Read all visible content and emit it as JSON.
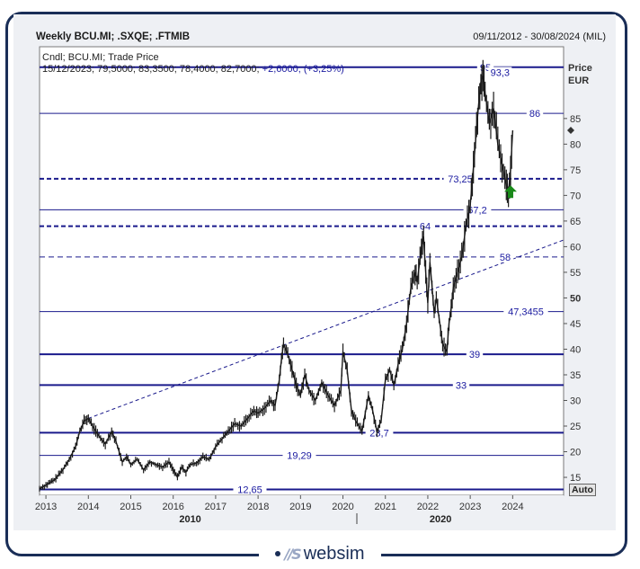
{
  "header": {
    "title": "Weekly BCU.MI; .SXQE; .FTMIB",
    "date_range": "09/11/2012 - 30/08/2024 (MIL)"
  },
  "legend": {
    "line1": "Cndl; BCU.MI; Trade Price",
    "line2_values": "15/12/2023; 79,5000; 83,3500; 78,4000; 82,7000;",
    "line2_change": "+2,6000; (+3,25%)"
  },
  "axis_unit": {
    "line1": "Price",
    "line2": "EUR"
  },
  "auto_button": "Auto",
  "footer": {
    "brand": "websim",
    "mark": "∕∕S"
  },
  "colors": {
    "frame": "#1a2e57",
    "level_line": "#1a1a8c",
    "level_label": "#1a1aa0",
    "candles": "#1a1a1a",
    "arrow": "#1a8a1a"
  },
  "chart_data": {
    "type": "candlestick",
    "series_name": "BCU.MI",
    "ylim": [
      11.5,
      99
    ],
    "xlim": [
      2012.85,
      2025.2
    ],
    "y_ticks": [
      15,
      20,
      25,
      30,
      35,
      40,
      45,
      50,
      55,
      60,
      65,
      70,
      75,
      80,
      85
    ],
    "y_bold_ticks": [
      50
    ],
    "x_ticks": [
      2013,
      2014,
      2015,
      2016,
      2017,
      2018,
      2019,
      2020,
      2021,
      2022,
      2023,
      2024
    ],
    "x_major_labels": [
      {
        "label": "2010",
        "x": 2016.4
      },
      {
        "label": "2020",
        "x": 2022.3
      }
    ],
    "horizontal_levels": [
      {
        "value": 95,
        "label": "95",
        "style": "solid-thick"
      },
      {
        "value": 86,
        "label": "86",
        "style": "solid"
      },
      {
        "value": 73.25,
        "label": "73,25",
        "style": "dashed-thick"
      },
      {
        "value": 67.2,
        "label": "67,2",
        "style": "solid"
      },
      {
        "value": 64,
        "label": "64",
        "style": "dashed-thick"
      },
      {
        "value": 58,
        "label": "58",
        "style": "dashed"
      },
      {
        "value": 47.3455,
        "label": "47,3455",
        "style": "solid"
      },
      {
        "value": 39,
        "label": "39",
        "style": "solid-thick"
      },
      {
        "value": 33,
        "label": "33",
        "style": "solid-thick"
      },
      {
        "value": 23.7,
        "label": "23,7",
        "style": "solid-thick"
      },
      {
        "value": 19.29,
        "label": "19,29",
        "style": "solid"
      },
      {
        "value": 12.65,
        "label": "12,65",
        "style": "solid-thick"
      }
    ],
    "peak_label": {
      "value": 93.3,
      "label": "93,3",
      "x": 2023.3
    },
    "trendline": {
      "from": [
        2014.0,
        26.5
      ],
      "to": [
        2025.2,
        61.3
      ]
    },
    "last_marker": {
      "value": 82.7
    },
    "signal_arrow": {
      "x": 2023.95,
      "y": 69.5,
      "direction": "up"
    },
    "price_path": [
      [
        2012.85,
        12.8
      ],
      [
        2013.0,
        13.5
      ],
      [
        2013.2,
        14.5
      ],
      [
        2013.4,
        16.5
      ],
      [
        2013.55,
        18.5
      ],
      [
        2013.7,
        21
      ],
      [
        2013.8,
        24
      ],
      [
        2013.9,
        26
      ],
      [
        2014.0,
        26.5
      ],
      [
        2014.1,
        25
      ],
      [
        2014.25,
        23
      ],
      [
        2014.4,
        21.5
      ],
      [
        2014.55,
        24
      ],
      [
        2014.65,
        22
      ],
      [
        2014.8,
        18
      ],
      [
        2014.9,
        19
      ],
      [
        2015.0,
        17.5
      ],
      [
        2015.15,
        18.5
      ],
      [
        2015.3,
        16.5
      ],
      [
        2015.45,
        18
      ],
      [
        2015.6,
        17.5
      ],
      [
        2015.75,
        17
      ],
      [
        2015.9,
        18
      ],
      [
        2016.0,
        16.5
      ],
      [
        2016.1,
        15
      ],
      [
        2016.2,
        17
      ],
      [
        2016.3,
        16
      ],
      [
        2016.4,
        17.5
      ],
      [
        2016.55,
        17.8
      ],
      [
        2016.7,
        19
      ],
      [
        2016.85,
        18.5
      ],
      [
        2017.0,
        21
      ],
      [
        2017.15,
        22.5
      ],
      [
        2017.3,
        24
      ],
      [
        2017.45,
        25.5
      ],
      [
        2017.6,
        25
      ],
      [
        2017.75,
        26.5
      ],
      [
        2017.9,
        28
      ],
      [
        2018.0,
        27.5
      ],
      [
        2018.15,
        28.5
      ],
      [
        2018.3,
        30
      ],
      [
        2018.4,
        29
      ],
      [
        2018.5,
        34
      ],
      [
        2018.55,
        38
      ],
      [
        2018.6,
        41
      ],
      [
        2018.7,
        39
      ],
      [
        2018.8,
        36
      ],
      [
        2018.9,
        33
      ],
      [
        2019.0,
        31
      ],
      [
        2019.1,
        35
      ],
      [
        2019.2,
        32
      ],
      [
        2019.35,
        30
      ],
      [
        2019.5,
        33.5
      ],
      [
        2019.65,
        31
      ],
      [
        2019.8,
        29
      ],
      [
        2019.95,
        32
      ],
      [
        2020.0,
        39.5
      ],
      [
        2020.1,
        36
      ],
      [
        2020.2,
        28
      ],
      [
        2020.3,
        26
      ],
      [
        2020.45,
        24
      ],
      [
        2020.6,
        31
      ],
      [
        2020.7,
        28
      ],
      [
        2020.8,
        24
      ],
      [
        2020.9,
        26
      ],
      [
        2021.0,
        34
      ],
      [
        2021.1,
        36
      ],
      [
        2021.2,
        33
      ],
      [
        2021.3,
        37
      ],
      [
        2021.4,
        40
      ],
      [
        2021.5,
        45
      ],
      [
        2021.6,
        52
      ],
      [
        2021.7,
        55
      ],
      [
        2021.75,
        53
      ],
      [
        2021.85,
        60
      ],
      [
        2021.9,
        62
      ],
      [
        2021.95,
        55
      ],
      [
        2022.0,
        49
      ],
      [
        2022.05,
        57
      ],
      [
        2022.1,
        52
      ],
      [
        2022.15,
        47
      ],
      [
        2022.2,
        50
      ],
      [
        2022.3,
        44
      ],
      [
        2022.35,
        41
      ],
      [
        2022.45,
        39.5
      ],
      [
        2022.5,
        45
      ],
      [
        2022.55,
        48
      ],
      [
        2022.6,
        52
      ],
      [
        2022.7,
        55
      ],
      [
        2022.8,
        58
      ],
      [
        2022.9,
        64
      ],
      [
        2023.0,
        68
      ],
      [
        2023.05,
        73
      ],
      [
        2023.1,
        78
      ],
      [
        2023.15,
        83
      ],
      [
        2023.2,
        88
      ],
      [
        2023.25,
        92
      ],
      [
        2023.3,
        93.3
      ],
      [
        2023.35,
        90
      ],
      [
        2023.45,
        84
      ],
      [
        2023.55,
        87
      ],
      [
        2023.65,
        80
      ],
      [
        2023.75,
        76
      ],
      [
        2023.85,
        72
      ],
      [
        2023.9,
        70.5
      ],
      [
        2023.95,
        75
      ],
      [
        2024.0,
        82.7
      ]
    ]
  }
}
